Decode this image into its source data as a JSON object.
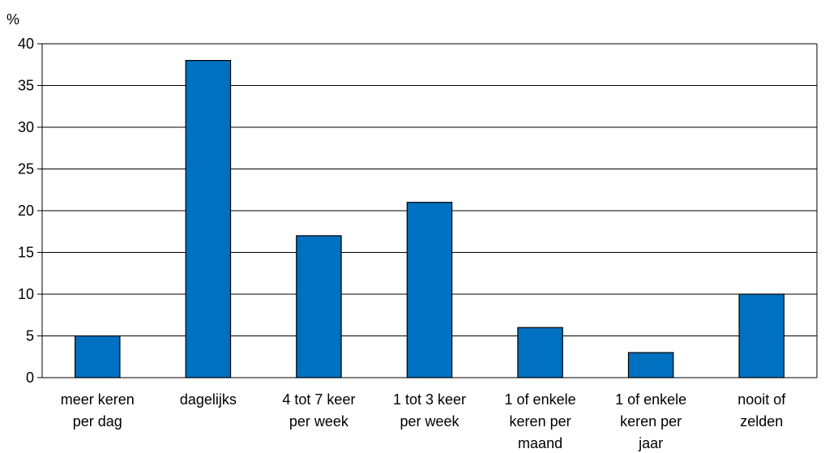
{
  "chart_data": {
    "type": "bar",
    "ylabel": "%",
    "ylim": [
      0,
      40
    ],
    "yticks": [
      0,
      5,
      10,
      15,
      20,
      25,
      30,
      35,
      40
    ],
    "grid": true,
    "categories": [
      [
        "meer keren",
        "per dag"
      ],
      [
        "dagelijks"
      ],
      [
        "4 tot 7 keer",
        "per week"
      ],
      [
        "1 tot 3 keer",
        "per week"
      ],
      [
        "1 of enkele",
        "keren per",
        "maand"
      ],
      [
        "1 of enkele",
        "keren per",
        "jaar"
      ],
      [
        "nooit of",
        "zelden"
      ]
    ],
    "values": [
      5,
      38,
      17,
      21,
      6,
      3,
      10
    ],
    "colors": {
      "bar": "#0070C0",
      "border": "#000000",
      "grid": "#000000"
    }
  }
}
